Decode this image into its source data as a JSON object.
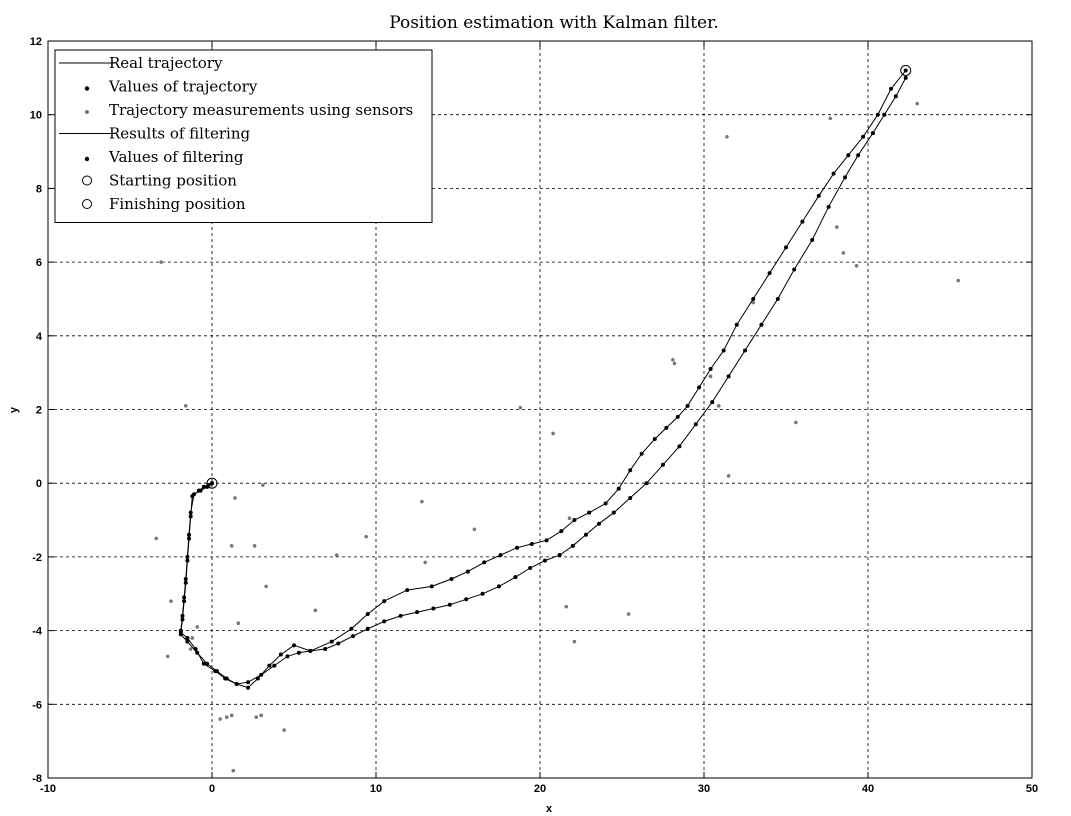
{
  "chart_data": {
    "type": "line",
    "title": "Position estimation with Kalman filter.",
    "xlabel": "x",
    "ylabel": "y",
    "xlim": [
      -10,
      50
    ],
    "ylim": [
      -8,
      12
    ],
    "xticks": [
      -10,
      0,
      10,
      20,
      30,
      40,
      50
    ],
    "yticks": [
      -8,
      -6,
      -4,
      -2,
      0,
      2,
      4,
      6,
      8,
      10,
      12
    ],
    "grid": true,
    "legend_position": "top-left",
    "colors": {
      "line": "#000000",
      "measurement": "#777777",
      "axes": "#000000"
    },
    "series": [
      {
        "name": "Real trajectory",
        "style": "line",
        "x": [
          0,
          -0.3,
          -0.7,
          -1.1,
          -1.3,
          -1.4,
          -1.5,
          -1.6,
          -1.7,
          -1.8,
          -1.9,
          -1.9,
          -1.5,
          -0.9,
          -0.3,
          0.3,
          0.9,
          1.5,
          2.2,
          3.0,
          3.8,
          4.6,
          5.3,
          6.0,
          6.9,
          7.7,
          8.6,
          9.5,
          10.5,
          11.5,
          12.5,
          13.5,
          14.5,
          15.5,
          16.5,
          17.5,
          18.5,
          19.4,
          20.3,
          21.2,
          22.0,
          22.8,
          23.6,
          24.5,
          25.5,
          26.5,
          27.5,
          28.5,
          29.5,
          30.5,
          31.5,
          32.5,
          33.5,
          34.5,
          35.5,
          36.6,
          37.6,
          38.6,
          39.4,
          40.3,
          41.0,
          41.7,
          42.3
        ],
        "y": [
          0,
          -0.1,
          -0.2,
          -0.3,
          -0.8,
          -1.4,
          -2.0,
          -2.6,
          -3.1,
          -3.6,
          -4.0,
          -4.1,
          -4.3,
          -4.6,
          -4.9,
          -5.1,
          -5.3,
          -5.45,
          -5.4,
          -5.2,
          -4.95,
          -4.7,
          -4.6,
          -4.55,
          -4.5,
          -4.35,
          -4.15,
          -3.95,
          -3.75,
          -3.6,
          -3.5,
          -3.4,
          -3.3,
          -3.15,
          -3.0,
          -2.8,
          -2.55,
          -2.3,
          -2.1,
          -1.95,
          -1.7,
          -1.4,
          -1.1,
          -0.8,
          -0.4,
          0.0,
          0.5,
          1.0,
          1.6,
          2.2,
          2.9,
          3.6,
          4.3,
          5.0,
          5.8,
          6.6,
          7.5,
          8.3,
          8.9,
          9.5,
          10.0,
          10.5,
          11.0
        ]
      },
      {
        "name": "Values of trajectory",
        "style": "markers",
        "x": [
          0,
          -0.3,
          -0.7,
          -1.1,
          -1.3,
          -1.4,
          -1.5,
          -1.6,
          -1.7,
          -1.8,
          -1.9,
          -1.9,
          -1.5,
          -0.9,
          -0.3,
          0.3,
          0.9,
          1.5,
          2.2,
          3.0,
          3.8,
          4.6,
          5.3,
          6.0,
          6.9,
          7.7,
          8.6,
          9.5,
          10.5,
          11.5,
          12.5,
          13.5,
          14.5,
          15.5,
          16.5,
          17.5,
          18.5,
          19.4,
          20.3,
          21.2,
          22.0,
          22.8,
          23.6,
          24.5,
          25.5,
          26.5,
          27.5,
          28.5,
          29.5,
          30.5,
          31.5,
          32.5,
          33.5,
          34.5,
          35.5,
          36.6,
          37.6,
          38.6,
          39.4,
          40.3,
          41.0,
          41.7,
          42.3
        ],
        "y": [
          0,
          -0.1,
          -0.2,
          -0.3,
          -0.8,
          -1.4,
          -2.0,
          -2.6,
          -3.1,
          -3.6,
          -4.0,
          -4.1,
          -4.3,
          -4.6,
          -4.9,
          -5.1,
          -5.3,
          -5.45,
          -5.4,
          -5.2,
          -4.95,
          -4.7,
          -4.6,
          -4.55,
          -4.5,
          -4.35,
          -4.15,
          -3.95,
          -3.75,
          -3.6,
          -3.5,
          -3.4,
          -3.3,
          -3.15,
          -3.0,
          -2.8,
          -2.55,
          -2.3,
          -2.1,
          -1.95,
          -1.7,
          -1.4,
          -1.1,
          -0.8,
          -0.4,
          0.0,
          0.5,
          1.0,
          1.6,
          2.2,
          2.9,
          3.6,
          4.3,
          5.0,
          5.8,
          6.6,
          7.5,
          8.3,
          8.9,
          9.5,
          10.0,
          10.5,
          11.0
        ]
      },
      {
        "name": "Trajectory measurements using sensors",
        "style": "measurements",
        "x": [
          -3.4,
          -3.1,
          -2.7,
          -1.6,
          -1.2,
          -0.9,
          -2.5,
          -1.3,
          0.5,
          0.9,
          1.2,
          1.4,
          1.2,
          1.6,
          2.6,
          3.1,
          3.3,
          1.3,
          2.7,
          3.0,
          4.4,
          6.3,
          7.6,
          9.4,
          12.8,
          13.0,
          16.0,
          18.8,
          20.8,
          21.8,
          22.1,
          21.6,
          25.4,
          28.1,
          28.2,
          30.4,
          30.9,
          31.4,
          31.5,
          33.0,
          35.6,
          37.7,
          38.1,
          38.5,
          39.3,
          43.0,
          45.5
        ],
        "y": [
          -1.5,
          6.0,
          -4.7,
          2.1,
          -4.2,
          -3.9,
          -3.2,
          -4.5,
          -6.4,
          -6.35,
          -6.3,
          -0.4,
          -1.7,
          -3.8,
          -1.7,
          -0.05,
          -2.8,
          -7.8,
          -6.35,
          -6.3,
          -6.7,
          -3.45,
          -1.95,
          -1.45,
          -0.5,
          -2.15,
          -1.25,
          2.05,
          1.35,
          -0.95,
          -4.3,
          -3.35,
          -3.55,
          3.35,
          3.25,
          2.9,
          2.1,
          9.4,
          0.2,
          4.9,
          1.65,
          9.9,
          6.95,
          6.25,
          5.9,
          10.3,
          5.5
        ]
      },
      {
        "name": "Results of filtering",
        "style": "line",
        "x": [
          0,
          -0.2,
          -0.5,
          -0.8,
          -1.2,
          -1.3,
          -1.4,
          -1.5,
          -1.6,
          -1.7,
          -1.8,
          -1.9,
          -1.5,
          -1.0,
          -0.5,
          0.2,
          0.8,
          1.5,
          2.2,
          2.8,
          3.5,
          4.2,
          5.0,
          6.0,
          7.3,
          8.5,
          9.5,
          10.5,
          11.9,
          13.4,
          14.6,
          15.6,
          16.6,
          17.6,
          18.6,
          19.5,
          20.4,
          21.3,
          22.1,
          23.0,
          24.0,
          24.8,
          25.5,
          26.2,
          27.0,
          27.7,
          28.4,
          29.0,
          29.7,
          30.4,
          31.2,
          32.0,
          33.0,
          34.0,
          35.0,
          36.0,
          37.0,
          37.9,
          38.8,
          39.7,
          40.6,
          41.4,
          42.3
        ],
        "y": [
          0,
          -0.05,
          -0.1,
          -0.2,
          -0.35,
          -0.9,
          -1.5,
          -2.1,
          -2.7,
          -3.2,
          -3.7,
          -4.05,
          -4.2,
          -4.5,
          -4.9,
          -5.1,
          -5.3,
          -5.45,
          -5.55,
          -5.3,
          -4.95,
          -4.65,
          -4.4,
          -4.55,
          -4.3,
          -3.95,
          -3.55,
          -3.2,
          -2.9,
          -2.8,
          -2.6,
          -2.4,
          -2.15,
          -1.95,
          -1.75,
          -1.65,
          -1.55,
          -1.3,
          -1.0,
          -0.8,
          -0.55,
          -0.15,
          0.35,
          0.8,
          1.2,
          1.5,
          1.8,
          2.1,
          2.6,
          3.1,
          3.6,
          4.3,
          5.0,
          5.7,
          6.4,
          7.1,
          7.8,
          8.4,
          8.9,
          9.4,
          10.0,
          10.7,
          11.2
        ]
      },
      {
        "name": "Values of filtering",
        "style": "markers",
        "x": [
          0,
          -0.2,
          -0.5,
          -0.8,
          -1.2,
          -1.3,
          -1.4,
          -1.5,
          -1.6,
          -1.7,
          -1.8,
          -1.9,
          -1.5,
          -1.0,
          -0.5,
          0.2,
          0.8,
          1.5,
          2.2,
          2.8,
          3.5,
          4.2,
          5.0,
          6.0,
          7.3,
          8.5,
          9.5,
          10.5,
          11.9,
          13.4,
          14.6,
          15.6,
          16.6,
          17.6,
          18.6,
          19.5,
          20.4,
          21.3,
          22.1,
          23.0,
          24.0,
          24.8,
          25.5,
          26.2,
          27.0,
          27.7,
          28.4,
          29.0,
          29.7,
          30.4,
          31.2,
          32.0,
          33.0,
          34.0,
          35.0,
          36.0,
          37.0,
          37.9,
          38.8,
          39.7,
          40.6,
          41.4,
          42.3
        ],
        "y": [
          0,
          -0.05,
          -0.1,
          -0.2,
          -0.35,
          -0.9,
          -1.5,
          -2.1,
          -2.7,
          -3.2,
          -3.7,
          -4.05,
          -4.2,
          -4.5,
          -4.9,
          -5.1,
          -5.3,
          -5.45,
          -5.55,
          -5.3,
          -4.95,
          -4.65,
          -4.4,
          -4.55,
          -4.3,
          -3.95,
          -3.55,
          -3.2,
          -2.9,
          -2.8,
          -2.6,
          -2.4,
          -2.15,
          -1.95,
          -1.75,
          -1.65,
          -1.55,
          -1.3,
          -1.0,
          -0.8,
          -0.55,
          -0.15,
          0.35,
          0.8,
          1.2,
          1.5,
          1.8,
          2.1,
          2.6,
          3.1,
          3.6,
          4.3,
          5.0,
          5.7,
          6.4,
          7.1,
          7.8,
          8.4,
          8.9,
          9.4,
          10.0,
          10.7,
          11.2
        ]
      },
      {
        "name": "Starting position",
        "style": "circle",
        "x": [
          0
        ],
        "y": [
          0
        ]
      },
      {
        "name": "Finishing position",
        "style": "circle",
        "x": [
          42.3
        ],
        "y": [
          11.2
        ]
      }
    ]
  }
}
